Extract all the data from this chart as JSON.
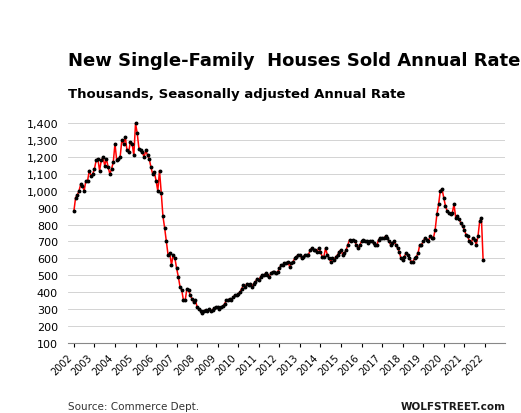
{
  "title": "New Single-Family  Houses Sold Annual Rate",
  "subtitle": "Thousands, Seasonally adjusted Annual Rate",
  "source_left": "Source: Commerce Dept.",
  "source_right": "WOLFSTREET.com",
  "ylim": [
    100,
    1450
  ],
  "yticks": [
    100,
    200,
    300,
    400,
    500,
    600,
    700,
    800,
    900,
    1000,
    1100,
    1200,
    1300,
    1400
  ],
  "line_color": "#FF0000",
  "marker_color": "#000000",
  "background_color": "#FFFFFF",
  "title_fontsize": 13,
  "subtitle_fontsize": 9.5,
  "values": [
    880,
    960,
    975,
    1000,
    1040,
    1030,
    1000,
    1060,
    1060,
    1120,
    1090,
    1100,
    1130,
    1180,
    1190,
    1120,
    1180,
    1200,
    1150,
    1190,
    1140,
    1100,
    1130,
    1170,
    1280,
    1180,
    1190,
    1200,
    1300,
    1280,
    1320,
    1240,
    1230,
    1290,
    1280,
    1210,
    1400,
    1340,
    1250,
    1240,
    1230,
    1200,
    1240,
    1210,
    1190,
    1140,
    1100,
    1110,
    1060,
    1000,
    1120,
    990,
    850,
    780,
    700,
    620,
    630,
    560,
    620,
    600,
    540,
    490,
    430,
    410,
    350,
    350,
    420,
    410,
    380,
    360,
    340,
    350,
    310,
    300,
    290,
    275,
    285,
    295,
    285,
    300,
    285,
    295,
    305,
    310,
    310,
    300,
    310,
    315,
    330,
    350,
    350,
    360,
    350,
    370,
    380,
    380,
    390,
    400,
    420,
    440,
    430,
    450,
    440,
    450,
    430,
    450,
    460,
    480,
    470,
    490,
    500,
    500,
    510,
    500,
    490,
    510,
    520,
    520,
    510,
    520,
    540,
    560,
    560,
    570,
    570,
    580,
    550,
    570,
    580,
    600,
    610,
    620,
    620,
    600,
    610,
    620,
    620,
    620,
    650,
    660,
    650,
    650,
    640,
    660,
    640,
    610,
    610,
    660,
    620,
    600,
    580,
    600,
    590,
    610,
    620,
    640,
    650,
    620,
    630,
    650,
    680,
    710,
    700,
    710,
    700,
    680,
    660,
    680,
    700,
    710,
    700,
    700,
    690,
    700,
    700,
    690,
    680,
    680,
    710,
    720,
    720,
    720,
    730,
    720,
    700,
    680,
    690,
    700,
    680,
    660,
    640,
    600,
    590,
    610,
    630,
    620,
    600,
    580,
    580,
    600,
    610,
    630,
    680,
    680,
    700,
    720,
    710,
    700,
    730,
    720,
    720,
    770,
    860,
    920,
    1000,
    1010,
    960,
    910,
    880,
    870,
    860,
    870,
    920,
    840,
    850,
    830,
    810,
    790,
    770,
    740,
    730,
    700,
    690,
    720,
    710,
    680,
    730,
    820,
    840,
    590
  ],
  "start_year": 2002,
  "xtick_years": [
    2002,
    2003,
    2004,
    2005,
    2006,
    2007,
    2008,
    2009,
    2010,
    2011,
    2012,
    2013,
    2014,
    2015,
    2016,
    2017,
    2018,
    2019,
    2020,
    2021,
    2022
  ]
}
